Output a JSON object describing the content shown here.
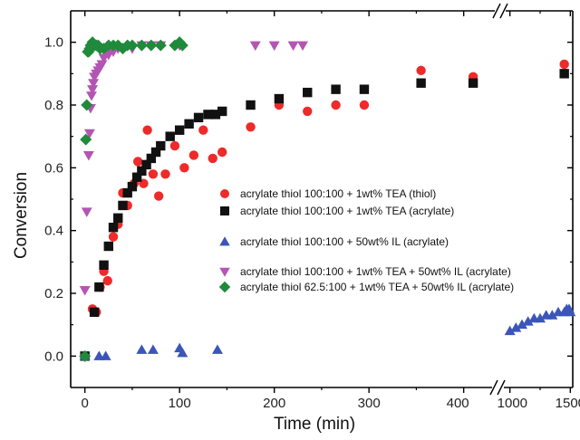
{
  "chart_data": {
    "type": "scatter",
    "xlabel": "Time (min)",
    "ylabel": "Conversion",
    "ylim": [
      -0.1,
      1.1
    ],
    "y_ticks": [
      "0.0",
      "0.2",
      "0.4",
      "0.6",
      "0.8",
      "1.0"
    ],
    "x_axis_broken": true,
    "x_segments": [
      {
        "range": [
          -15,
          430
        ],
        "ticks": [
          0,
          100,
          200,
          300,
          400
        ]
      },
      {
        "range": [
          950,
          1520
        ],
        "ticks": [
          1000,
          1500
        ]
      }
    ],
    "x_tick_labels": [
      "0",
      "100",
      "200",
      "300",
      "400",
      "1000",
      "1500"
    ],
    "legend_position": "center-right",
    "series": [
      {
        "name": "acrylate thiol 100:100 + 1wt% TEA (thiol)",
        "color": "#ee2a2a",
        "marker": "circle",
        "x": [
          8,
          12,
          16,
          20,
          24,
          30,
          35,
          40,
          45,
          52,
          56,
          62,
          66,
          72,
          78,
          85,
          95,
          105,
          115,
          125,
          135,
          145,
          175,
          205,
          235,
          265,
          295,
          355,
          410,
          1450
        ],
        "y": [
          0.15,
          0.14,
          0.22,
          0.27,
          0.24,
          0.38,
          0.42,
          0.52,
          0.48,
          0.55,
          0.62,
          0.55,
          0.72,
          0.58,
          0.51,
          0.58,
          0.67,
          0.6,
          0.64,
          0.72,
          0.63,
          0.65,
          0.73,
          0.8,
          0.78,
          0.8,
          0.8,
          0.91,
          0.89,
          0.93
        ]
      },
      {
        "name": "acrylate thiol 100:100 + 1wt% TEA (acrylate)",
        "color": "#111111",
        "marker": "square",
        "x": [
          0,
          10,
          15,
          20,
          25,
          30,
          35,
          40,
          45,
          50,
          55,
          60,
          65,
          70,
          75,
          80,
          90,
          100,
          110,
          120,
          130,
          138,
          145,
          175,
          205,
          235,
          265,
          295,
          355,
          410,
          1450
        ],
        "y": [
          0.0,
          0.14,
          0.22,
          0.29,
          0.35,
          0.41,
          0.44,
          0.48,
          0.52,
          0.54,
          0.57,
          0.59,
          0.61,
          0.63,
          0.65,
          0.67,
          0.7,
          0.72,
          0.74,
          0.76,
          0.77,
          0.77,
          0.78,
          0.8,
          0.82,
          0.84,
          0.85,
          0.85,
          0.87,
          0.87,
          0.9
        ]
      },
      {
        "name": "acrylate thiol 100:100 + 50wt% IL (acrylate)",
        "color": "#3b55b8",
        "marker": "triangle-up",
        "x": [
          0,
          15,
          22,
          60,
          72,
          100,
          103,
          140,
          1000,
          1050,
          1100,
          1150,
          1200,
          1250,
          1300,
          1350,
          1400,
          1450,
          1470,
          1490,
          1500
        ],
        "y": [
          0.0,
          0.0,
          0.0,
          0.02,
          0.02,
          0.025,
          0.01,
          0.02,
          0.08,
          0.09,
          0.1,
          0.11,
          0.12,
          0.12,
          0.13,
          0.13,
          0.14,
          0.14,
          0.15,
          0.15,
          0.14
        ]
      },
      {
        "name": "acrylate thiol 100:100  + 1wt% TEA + 50wt% IL (acrylate)",
        "color": "#b455b4",
        "marker": "triangle-down",
        "x": [
          0,
          2,
          4,
          5,
          6,
          7,
          8,
          9,
          10,
          12,
          14,
          16,
          18,
          20,
          25,
          30,
          35,
          40,
          50,
          60,
          70,
          80,
          100,
          180,
          200,
          220,
          230
        ],
        "y": [
          0.21,
          0.46,
          0.64,
          0.71,
          0.79,
          0.83,
          0.85,
          0.87,
          0.89,
          0.9,
          0.91,
          0.92,
          0.93,
          0.95,
          0.96,
          0.97,
          0.98,
          0.98,
          0.98,
          0.99,
          0.99,
          0.99,
          0.99,
          0.99,
          0.99,
          0.99,
          0.99
        ]
      },
      {
        "name": "acrylate thiol 62.5:100 + 1wt% TEA + 50wt% IL (acrylate)",
        "color": "#1f8a3b",
        "marker": "diamond",
        "x": [
          0,
          1,
          2,
          3,
          4,
          5,
          6,
          7,
          8,
          10,
          12,
          14,
          16,
          20,
          25,
          30,
          35,
          40,
          45,
          50,
          60,
          70,
          80,
          95,
          100,
          103
        ],
        "y": [
          0.0,
          0.69,
          0.8,
          0.97,
          0.97,
          0.98,
          0.99,
          0.99,
          1.0,
          0.99,
          0.99,
          0.99,
          0.98,
          0.98,
          0.99,
          0.99,
          0.99,
          0.98,
          0.99,
          0.99,
          0.99,
          0.99,
          0.99,
          0.99,
          1.0,
          0.99
        ]
      }
    ]
  }
}
